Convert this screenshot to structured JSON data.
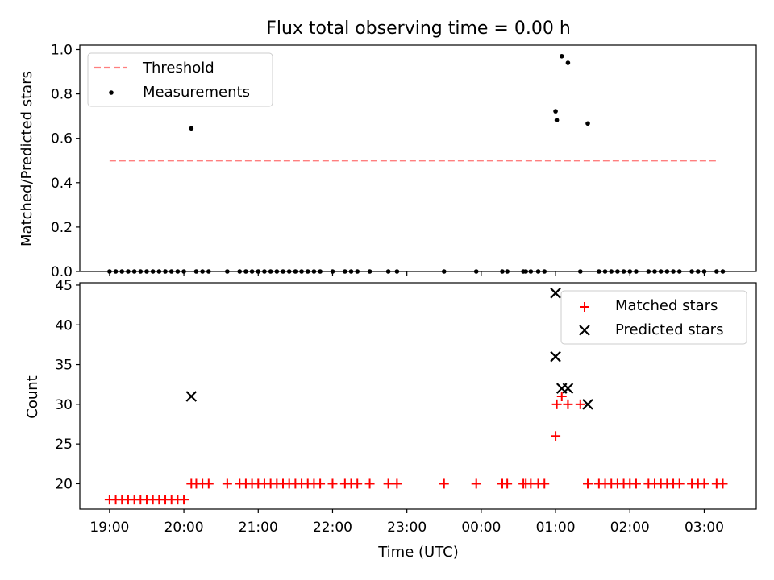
{
  "chart_data": [
    {
      "type": "scatter",
      "title": "Flux total observing time = 0.00 h",
      "xlabel": "",
      "ylabel": "Matched/Predicted stars",
      "ylim": [
        0,
        1.02
      ],
      "yticks": [
        "0.0",
        "0.2",
        "0.4",
        "0.6",
        "0.8",
        "1.0"
      ],
      "ytick_values": [
        0,
        0.2,
        0.4,
        0.6,
        0.8,
        1.0
      ],
      "legend_position": "top-left",
      "threshold": {
        "name": "Threshold",
        "value": 0.5,
        "x_range": [
          "19:00",
          "03:12"
        ],
        "color": "#ff7f7f"
      },
      "series": [
        {
          "name": "Measurements",
          "color": "#000000",
          "points": [
            [
              "19:00",
              0
            ],
            [
              "19:05",
              0
            ],
            [
              "19:10",
              0
            ],
            [
              "19:15",
              0
            ],
            [
              "19:20",
              0
            ],
            [
              "19:25",
              0
            ],
            [
              "19:30",
              0
            ],
            [
              "19:35",
              0
            ],
            [
              "19:40",
              0
            ],
            [
              "19:45",
              0
            ],
            [
              "19:50",
              0
            ],
            [
              "19:55",
              0
            ],
            [
              "20:00",
              0
            ],
            [
              "20:06",
              0.645
            ],
            [
              "20:10",
              0
            ],
            [
              "20:15",
              0
            ],
            [
              "20:20",
              0
            ],
            [
              "20:35",
              0
            ],
            [
              "20:45",
              0
            ],
            [
              "20:50",
              0
            ],
            [
              "20:55",
              0
            ],
            [
              "21:00",
              0
            ],
            [
              "21:05",
              0
            ],
            [
              "21:10",
              0
            ],
            [
              "21:15",
              0
            ],
            [
              "21:20",
              0
            ],
            [
              "21:25",
              0
            ],
            [
              "21:30",
              0
            ],
            [
              "21:35",
              0
            ],
            [
              "21:40",
              0
            ],
            [
              "21:45",
              0
            ],
            [
              "21:50",
              0
            ],
            [
              "22:00",
              0
            ],
            [
              "22:10",
              0
            ],
            [
              "22:15",
              0
            ],
            [
              "22:20",
              0
            ],
            [
              "22:30",
              0
            ],
            [
              "22:45",
              0
            ],
            [
              "22:52",
              0
            ],
            [
              "23:30",
              0
            ],
            [
              "23:56",
              0
            ],
            [
              "00:17",
              0
            ],
            [
              "00:21",
              0
            ],
            [
              "00:34",
              0
            ],
            [
              "00:36",
              0
            ],
            [
              "00:40",
              0
            ],
            [
              "00:46",
              0
            ],
            [
              "00:51",
              0
            ],
            [
              "01:00",
              0.722
            ],
            [
              "01:01",
              0.682
            ],
            [
              "01:05",
              0.97
            ],
            [
              "01:10",
              0.94
            ],
            [
              "01:20",
              0
            ],
            [
              "01:26",
              0.667
            ],
            [
              "01:35",
              0
            ],
            [
              "01:40",
              0
            ],
            [
              "01:45",
              0
            ],
            [
              "01:50",
              0
            ],
            [
              "01:55",
              0
            ],
            [
              "02:00",
              0
            ],
            [
              "02:05",
              0
            ],
            [
              "02:15",
              0
            ],
            [
              "02:20",
              0
            ],
            [
              "02:25",
              0
            ],
            [
              "02:30",
              0
            ],
            [
              "02:35",
              0
            ],
            [
              "02:40",
              0
            ],
            [
              "02:50",
              0
            ],
            [
              "02:55",
              0
            ],
            [
              "03:00",
              0
            ],
            [
              "03:10",
              0
            ],
            [
              "03:15",
              0
            ]
          ]
        }
      ]
    },
    {
      "type": "scatter",
      "title": "",
      "xlabel": "Time (UTC)",
      "ylabel": "Count",
      "ylim": [
        16.8,
        45.3
      ],
      "yticks": [
        "20",
        "25",
        "30",
        "35",
        "40",
        "45"
      ],
      "ytick_values": [
        20,
        25,
        30,
        35,
        40,
        45
      ],
      "xticks": [
        "19:00",
        "20:00",
        "21:00",
        "22:00",
        "23:00",
        "00:00",
        "01:00",
        "02:00",
        "03:00"
      ],
      "xlim": [
        "18:36",
        "03:42"
      ],
      "legend_position": "top-right",
      "series": [
        {
          "name": "Matched stars",
          "color": "#ff0000",
          "marker": "+",
          "points": [
            [
              "19:00",
              18
            ],
            [
              "19:05",
              18
            ],
            [
              "19:10",
              18
            ],
            [
              "19:15",
              18
            ],
            [
              "19:20",
              18
            ],
            [
              "19:25",
              18
            ],
            [
              "19:30",
              18
            ],
            [
              "19:35",
              18
            ],
            [
              "19:40",
              18
            ],
            [
              "19:45",
              18
            ],
            [
              "19:50",
              18
            ],
            [
              "19:55",
              18
            ],
            [
              "20:00",
              18
            ],
            [
              "20:06",
              20
            ],
            [
              "20:10",
              20
            ],
            [
              "20:15",
              20
            ],
            [
              "20:20",
              20
            ],
            [
              "20:35",
              20
            ],
            [
              "20:45",
              20
            ],
            [
              "20:50",
              20
            ],
            [
              "20:55",
              20
            ],
            [
              "21:00",
              20
            ],
            [
              "21:05",
              20
            ],
            [
              "21:10",
              20
            ],
            [
              "21:15",
              20
            ],
            [
              "21:20",
              20
            ],
            [
              "21:25",
              20
            ],
            [
              "21:30",
              20
            ],
            [
              "21:35",
              20
            ],
            [
              "21:40",
              20
            ],
            [
              "21:45",
              20
            ],
            [
              "21:50",
              20
            ],
            [
              "22:00",
              20
            ],
            [
              "22:10",
              20
            ],
            [
              "22:15",
              20
            ],
            [
              "22:20",
              20
            ],
            [
              "22:30",
              20
            ],
            [
              "22:45",
              20
            ],
            [
              "22:52",
              20
            ],
            [
              "23:30",
              20
            ],
            [
              "23:56",
              20
            ],
            [
              "00:17",
              20
            ],
            [
              "00:21",
              20
            ],
            [
              "00:34",
              20
            ],
            [
              "00:36",
              20
            ],
            [
              "00:40",
              20
            ],
            [
              "00:46",
              20
            ],
            [
              "00:51",
              20
            ],
            [
              "01:00",
              26
            ],
            [
              "01:01",
              30
            ],
            [
              "01:05",
              31
            ],
            [
              "01:10",
              30
            ],
            [
              "01:20",
              30
            ],
            [
              "01:26",
              20
            ],
            [
              "01:35",
              20
            ],
            [
              "01:40",
              20
            ],
            [
              "01:45",
              20
            ],
            [
              "01:50",
              20
            ],
            [
              "01:55",
              20
            ],
            [
              "02:00",
              20
            ],
            [
              "02:05",
              20
            ],
            [
              "02:15",
              20
            ],
            [
              "02:20",
              20
            ],
            [
              "02:25",
              20
            ],
            [
              "02:30",
              20
            ],
            [
              "02:35",
              20
            ],
            [
              "02:40",
              20
            ],
            [
              "02:50",
              20
            ],
            [
              "02:55",
              20
            ],
            [
              "03:00",
              20
            ],
            [
              "03:10",
              20
            ],
            [
              "03:15",
              20
            ]
          ]
        },
        {
          "name": "Predicted stars",
          "color": "#000000",
          "marker": "x",
          "points": [
            [
              "20:06",
              31
            ],
            [
              "01:00",
              44
            ],
            [
              "01:00",
              36
            ],
            [
              "01:05",
              32
            ],
            [
              "01:10",
              32
            ],
            [
              "01:26",
              30
            ]
          ]
        }
      ]
    }
  ]
}
